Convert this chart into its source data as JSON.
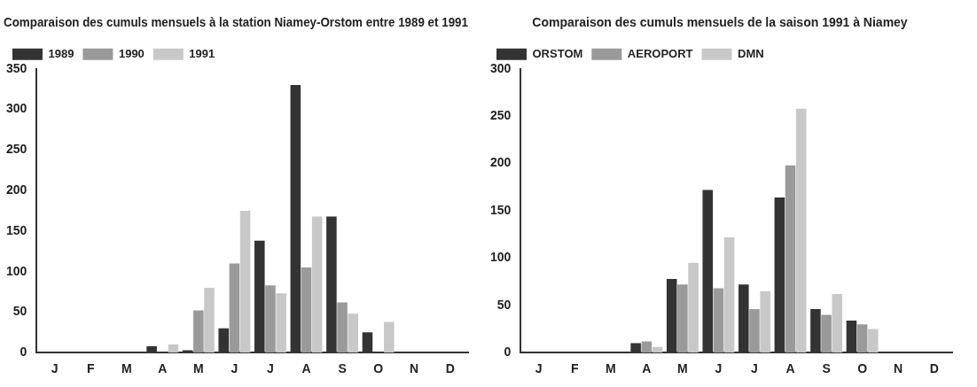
{
  "chart_data": [
    {
      "type": "bar",
      "title": "Comparaison des cumuls mensuels à la station Niamey-Orstom entre 1989 et 1991",
      "categories": [
        "J",
        "F",
        "M",
        "A",
        "M",
        "J",
        "J",
        "A",
        "S",
        "O",
        "N",
        "D"
      ],
      "series": [
        {
          "name": "1989",
          "color": "#333333",
          "values": [
            0,
            0,
            0,
            8,
            3,
            30,
            138,
            330,
            168,
            25,
            0,
            0
          ]
        },
        {
          "name": "1990",
          "color": "#9a9a9a",
          "values": [
            0,
            0,
            0,
            0,
            52,
            110,
            83,
            105,
            62,
            0,
            0,
            0
          ]
        },
        {
          "name": "1991",
          "color": "#c8c8c8",
          "values": [
            0,
            0,
            0,
            10,
            80,
            175,
            73,
            168,
            48,
            38,
            0,
            0
          ]
        }
      ],
      "ylim": [
        0,
        350
      ],
      "yticks": [
        0,
        50,
        100,
        150,
        200,
        250,
        300,
        350
      ],
      "legend": "top left",
      "grid": false
    },
    {
      "type": "bar",
      "title": "Comparaison des cumuls mensuels de la saison 1991 à Niamey",
      "categories": [
        "J",
        "F",
        "M",
        "A",
        "M",
        "J",
        "J",
        "A",
        "S",
        "O",
        "N",
        "D"
      ],
      "series": [
        {
          "name": "ORSTOM",
          "color": "#333333",
          "values": [
            0,
            0,
            0,
            10,
            78,
            172,
            72,
            164,
            46,
            34,
            0,
            0
          ]
        },
        {
          "name": "AEROPORT",
          "color": "#9a9a9a",
          "values": [
            0,
            0,
            0,
            12,
            72,
            68,
            46,
            198,
            40,
            30,
            0,
            0
          ]
        },
        {
          "name": "DMN",
          "color": "#c8c8c8",
          "values": [
            0,
            0,
            0,
            6,
            95,
            122,
            65,
            258,
            62,
            25,
            0,
            0
          ]
        }
      ],
      "ylim": [
        0,
        300
      ],
      "yticks": [
        0,
        50,
        100,
        150,
        200,
        250,
        300
      ],
      "legend": "top left",
      "grid": false
    }
  ]
}
